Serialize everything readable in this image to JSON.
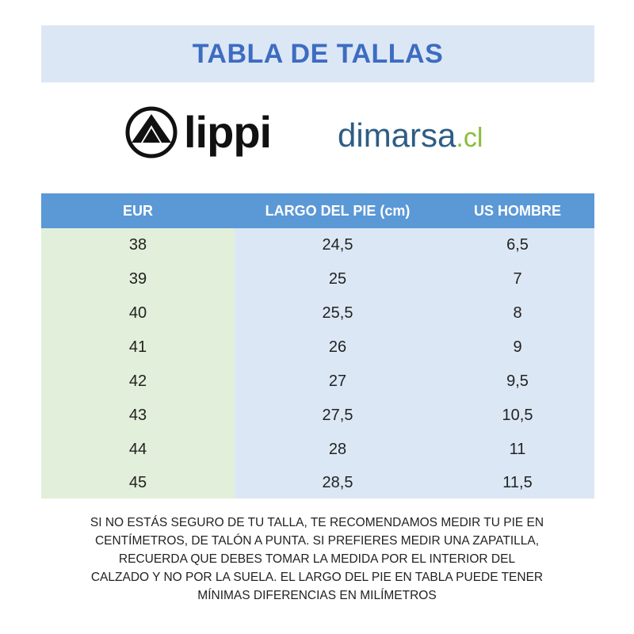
{
  "title": "TABLA DE TALLAS",
  "logos": {
    "brand1_icon": "mountain-circle-icon",
    "brand1_name": "lippi",
    "brand2_name": "dimarsa",
    "brand2_tld": ".cl"
  },
  "table": {
    "headers": [
      "EUR",
      "LARGO DEL PIE (cm)",
      "US HOMBRE"
    ],
    "rows": [
      [
        "38",
        "24,5",
        "6,5"
      ],
      [
        "39",
        "25",
        "7"
      ],
      [
        "40",
        "25,5",
        "8"
      ],
      [
        "41",
        "26",
        "9"
      ],
      [
        "42",
        "27",
        "9,5"
      ],
      [
        "43",
        "27,5",
        "10,5"
      ],
      [
        "44",
        "28",
        "11"
      ],
      [
        "45",
        "28,5",
        "11,5"
      ]
    ]
  },
  "note": {
    "lines": [
      "SI NO ESTÁS SEGURO DE TU TALLA, TE RECOMENDAMOS MEDIR TU PIE EN",
      "CENTÍMETROS, DE TALÓN A PUNTA. SI PREFIERES MEDIR UNA ZAPATILLA,",
      "RECUERDA QUE DEBES TOMAR LA MEDIDA POR EL INTERIOR DEL",
      "CALZADO Y NO POR LA SUELA. EL LARGO DEL PIE EN TABLA PUEDE TENER",
      "MÍNIMAS DIFERENCIAS EN MILÍMETROS"
    ]
  },
  "colors": {
    "title_text": "#3d6cc1",
    "title_bg": "#dce7f5",
    "header_bg": "#5b98d6",
    "eur_col_bg": "#e2efda",
    "value_col_bg": "#dce7f5",
    "dimarsa_text": "#2e5d85",
    "dimarsa_tld": "#8bbd3a"
  }
}
